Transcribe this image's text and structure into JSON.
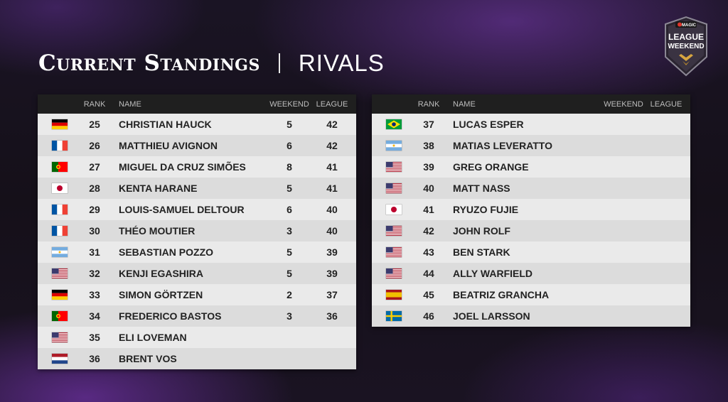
{
  "header": {
    "title": "Current Standings",
    "subtitle": "RIVALS"
  },
  "logo": {
    "line1": "LEAGUE",
    "line2": "WEEKEND",
    "brand": "MAGIC"
  },
  "columns": {
    "rank": "RANK",
    "name": "NAME",
    "weekend": "WEEKEND",
    "league": "LEAGUE"
  },
  "colors": {
    "header_bg": "#1f1f1f",
    "row_light": "#eaeaea",
    "row_dark": "#dcdcdc",
    "accent_purple": "#8a3fd1"
  },
  "tables": [
    {
      "rows": [
        {
          "flag": "germany",
          "rank": "25",
          "name": "CHRISTIAN HAUCK",
          "weekend": "5",
          "league": "42"
        },
        {
          "flag": "france",
          "rank": "26",
          "name": "MATTHIEU AVIGNON",
          "weekend": "6",
          "league": "42"
        },
        {
          "flag": "portugal",
          "rank": "27",
          "name": "MIGUEL DA CRUZ SIMÕES",
          "weekend": "8",
          "league": "41"
        },
        {
          "flag": "japan",
          "rank": "28",
          "name": "KENTA HARANE",
          "weekend": "5",
          "league": "41"
        },
        {
          "flag": "france",
          "rank": "29",
          "name": "LOUIS-SAMUEL DELTOUR",
          "weekend": "6",
          "league": "40"
        },
        {
          "flag": "france",
          "rank": "30",
          "name": "THÉO MOUTIER",
          "weekend": "3",
          "league": "40"
        },
        {
          "flag": "argentina",
          "rank": "31",
          "name": "SEBASTIAN POZZO",
          "weekend": "5",
          "league": "39"
        },
        {
          "flag": "usa",
          "rank": "32",
          "name": "KENJI EGASHIRA",
          "weekend": "5",
          "league": "39"
        },
        {
          "flag": "germany",
          "rank": "33",
          "name": "SIMON GÖRTZEN",
          "weekend": "2",
          "league": "37"
        },
        {
          "flag": "portugal",
          "rank": "34",
          "name": "FREDERICO BASTOS",
          "weekend": "3",
          "league": "36"
        },
        {
          "flag": "usa",
          "rank": "35",
          "name": "ELI LOVEMAN",
          "weekend": "",
          "league": ""
        },
        {
          "flag": "netherlands",
          "rank": "36",
          "name": "BRENT VOS",
          "weekend": "",
          "league": ""
        }
      ]
    },
    {
      "rows": [
        {
          "flag": "brazil",
          "rank": "37",
          "name": "LUCAS ESPER",
          "weekend": "",
          "league": ""
        },
        {
          "flag": "argentina",
          "rank": "38",
          "name": "MATIAS LEVERATTO",
          "weekend": "",
          "league": ""
        },
        {
          "flag": "usa",
          "rank": "39",
          "name": "GREG ORANGE",
          "weekend": "",
          "league": ""
        },
        {
          "flag": "usa",
          "rank": "40",
          "name": "MATT NASS",
          "weekend": "",
          "league": ""
        },
        {
          "flag": "japan",
          "rank": "41",
          "name": "RYUZO FUJIE",
          "weekend": "",
          "league": ""
        },
        {
          "flag": "usa",
          "rank": "42",
          "name": "JOHN ROLF",
          "weekend": "",
          "league": ""
        },
        {
          "flag": "usa",
          "rank": "43",
          "name": "BEN STARK",
          "weekend": "",
          "league": ""
        },
        {
          "flag": "usa",
          "rank": "44",
          "name": "ALLY WARFIELD",
          "weekend": "",
          "league": ""
        },
        {
          "flag": "spain",
          "rank": "45",
          "name": "BEATRIZ GRANCHA",
          "weekend": "",
          "league": ""
        },
        {
          "flag": "sweden",
          "rank": "46",
          "name": "JOEL LARSSON",
          "weekend": "",
          "league": ""
        }
      ]
    }
  ]
}
